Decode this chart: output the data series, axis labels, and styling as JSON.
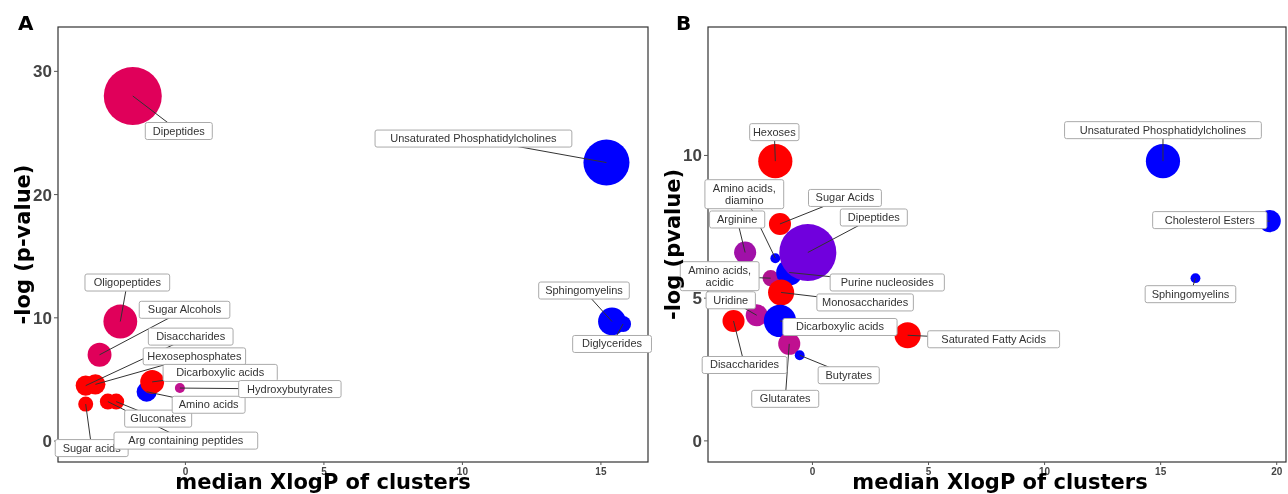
{
  "chart_data": [
    {
      "type": "bubble",
      "title": "A",
      "xlabel": "median XlogP of clusters",
      "ylabel": "-log (p-value)",
      "xlim": [
        -4.6,
        16.7
      ],
      "ylim": [
        -1.7,
        33.6
      ],
      "xticks": [
        0,
        5,
        10,
        15
      ],
      "yticks": [
        0,
        10,
        20,
        30
      ],
      "series": [
        {
          "name": "Dipeptides",
          "color": "#e0005a",
          "x": [
            -1.9
          ],
          "values": [
            28.0
          ],
          "sizes": [
            1
          ]
        },
        {
          "name": "Unsaturated Phosphatidylcholines",
          "color": "#0000ff",
          "x": [
            15.2
          ],
          "values": [
            22.6
          ],
          "sizes": [
            0.63
          ]
        },
        {
          "name": "Oligopeptides",
          "color": "#e0005a",
          "x": [
            -2.35
          ],
          "values": [
            9.7
          ],
          "sizes": [
            0.34
          ]
        },
        {
          "name": "Sugar Alcohols",
          "color": "#e0005a",
          "x": [
            -3.1
          ],
          "values": [
            7.0
          ],
          "sizes": [
            0.17
          ]
        },
        {
          "name": "Disaccharides",
          "color": "#ff0000",
          "x": [
            -3.6
          ],
          "values": [
            4.5
          ],
          "sizes": [
            0.12
          ]
        },
        {
          "name": "Hexosephosphates",
          "color": "#ff0000",
          "x": [
            -3.25
          ],
          "values": [
            4.6
          ],
          "sizes": [
            0.12
          ]
        },
        {
          "name": "Sugar acids",
          "color": "#ff0000",
          "x": [
            -3.6
          ],
          "values": [
            3.0
          ],
          "sizes": [
            0.067
          ]
        },
        {
          "name": "Arg containing peptides",
          "color": "#ff0000",
          "x": [
            -2.8
          ],
          "values": [
            3.2
          ],
          "sizes": [
            0.076
          ]
        },
        {
          "name": "Gluconates",
          "color": "#ff0000",
          "x": [
            -2.5
          ],
          "values": [
            3.2
          ],
          "sizes": [
            0.076
          ]
        },
        {
          "name": "Amino acids",
          "color": "#0000ff",
          "x": [
            -1.4
          ],
          "values": [
            4.0
          ],
          "sizes": [
            0.12
          ]
        },
        {
          "name": "Dicarboxylic acids",
          "color": "#ff0000",
          "x": [
            -1.2
          ],
          "values": [
            4.8
          ],
          "sizes": [
            0.17
          ]
        },
        {
          "name": "Hydroxybutyrates",
          "color": "#c0128f",
          "x": [
            -0.2
          ],
          "values": [
            4.3
          ],
          "sizes": [
            0.03
          ]
        },
        {
          "name": "Sphingomyelins",
          "color": "#0000ff",
          "x": [
            15.4
          ],
          "values": [
            9.7
          ],
          "sizes": [
            0.23
          ]
        },
        {
          "name": "Diglycerides",
          "color": "#0000ff",
          "x": [
            15.8
          ],
          "values": [
            9.5
          ],
          "sizes": [
            0.076
          ]
        }
      ]
    },
    {
      "type": "bubble",
      "title": "B",
      "xlabel": "median XlogP of clusters",
      "ylabel": "-log (pvalue)",
      "xlim": [
        -4.5,
        20.4
      ],
      "ylim": [
        -0.74,
        14.5
      ],
      "xticks": [
        0,
        5,
        10,
        15,
        20
      ],
      "yticks": [
        0,
        5,
        10
      ],
      "series": [
        {
          "name": "Hexoses",
          "color": "#ff0000",
          "x": [
            -1.6
          ],
          "values": [
            9.8
          ],
          "sizes": [
            0.36
          ]
        },
        {
          "name": "Unsaturated Phosphatidylcholines",
          "color": "#0000ff",
          "x": [
            15.1
          ],
          "values": [
            9.8
          ],
          "sizes": [
            0.36
          ]
        },
        {
          "name": "Cholesterol Esters",
          "color": "#0000ff",
          "x": [
            19.7
          ],
          "values": [
            7.7
          ],
          "sizes": [
            0.15
          ]
        },
        {
          "name": "Sphingomyelins",
          "color": "#0000ff",
          "x": [
            16.5
          ],
          "values": [
            5.7
          ],
          "sizes": [
            0.03
          ]
        },
        {
          "name": "Sugar Acids",
          "color": "#ff0000",
          "x": [
            -1.4
          ],
          "values": [
            7.6
          ],
          "sizes": [
            0.15
          ]
        },
        {
          "name": "Arginine",
          "color": "#a010a8",
          "x": [
            -2.9
          ],
          "values": [
            6.6
          ],
          "sizes": [
            0.15
          ]
        },
        {
          "name": "Amino acids, diamino",
          "color": "#0000ff",
          "x": [
            -1.6
          ],
          "values": [
            6.4
          ],
          "sizes": [
            0.03
          ]
        },
        {
          "name": "Amino acids, acidic",
          "color": "#b01090",
          "x": [
            -1.8
          ],
          "values": [
            5.7
          ],
          "sizes": [
            0.08
          ]
        },
        {
          "name": "Purine nucleosides",
          "color": "#0000ff",
          "x": [
            -1.0
          ],
          "values": [
            5.9
          ],
          "sizes": [
            0.21
          ]
        },
        {
          "name": "Dipeptides",
          "color": "#7000dd",
          "x": [
            -0.2
          ],
          "values": [
            6.6
          ],
          "sizes": [
            1
          ]
        },
        {
          "name": "Monosaccharides",
          "color": "#ff0000",
          "x": [
            -1.35
          ],
          "values": [
            5.2
          ],
          "sizes": [
            0.21
          ]
        },
        {
          "name": "Uridine",
          "color": "#b8109a",
          "x": [
            -2.4
          ],
          "values": [
            4.4
          ],
          "sizes": [
            0.15
          ]
        },
        {
          "name": "Disaccharides",
          "color": "#ff0000",
          "x": [
            -3.4
          ],
          "values": [
            4.2
          ],
          "sizes": [
            0.15
          ]
        },
        {
          "name": "Dicarboxylic acids",
          "color": "#0000ff",
          "x": [
            -1.4
          ],
          "values": [
            4.2
          ],
          "sizes": [
            0.32
          ]
        },
        {
          "name": "Glutarates",
          "color": "#c01090",
          "x": [
            -1.0
          ],
          "values": [
            3.4
          ],
          "sizes": [
            0.15
          ]
        },
        {
          "name": "Butyrates",
          "color": "#0000ff",
          "x": [
            -0.55
          ],
          "values": [
            3.0
          ],
          "sizes": [
            0.03
          ]
        },
        {
          "name": "Saturated Fatty Acids",
          "color": "#ff0000",
          "x": [
            4.1
          ],
          "values": [
            3.7
          ],
          "sizes": [
            0.21
          ]
        }
      ]
    }
  ]
}
